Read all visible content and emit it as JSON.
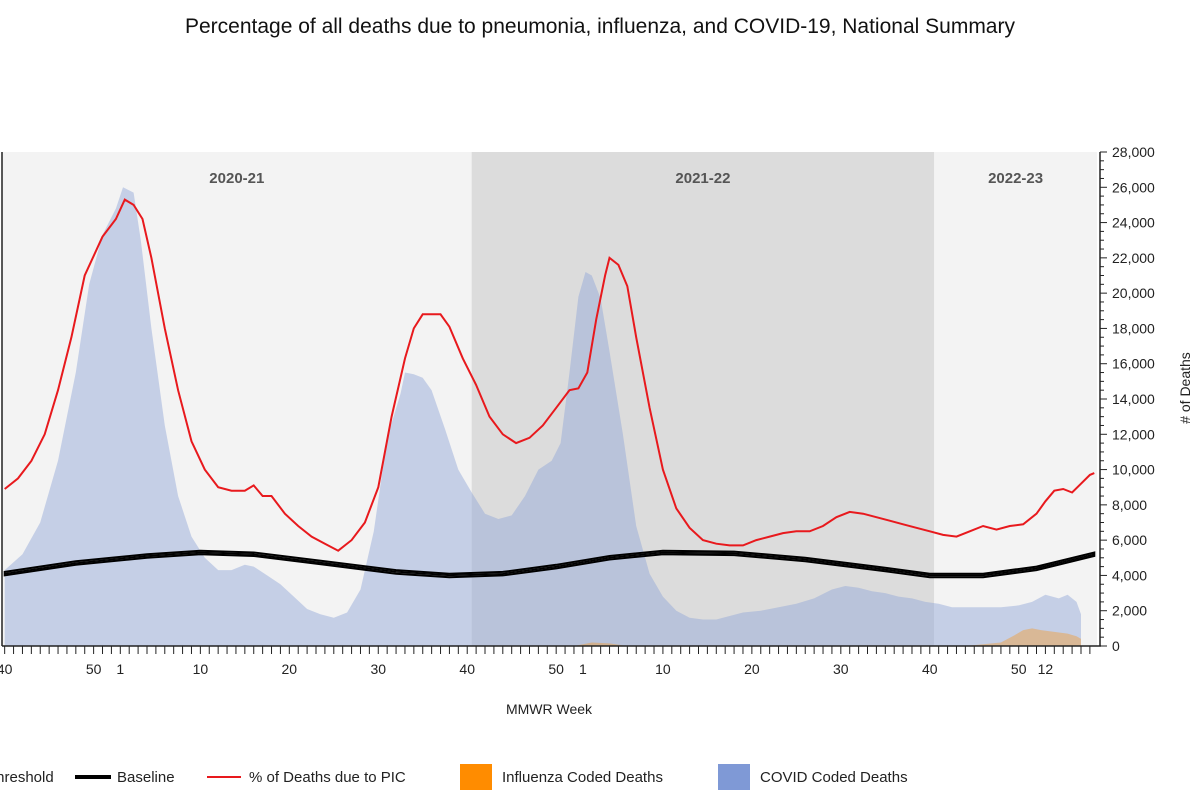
{
  "chart_data": {
    "type": "line",
    "title": "Percentage of all deaths due to pneumonia, influenza, and COVID-19, National Summary",
    "xlabel": "MMWR Week",
    "y2label": "# of Deaths",
    "x_tick_labels": [
      "40",
      "50",
      "1",
      "10",
      "20",
      "30",
      "40",
      "50",
      "1",
      "10",
      "20",
      "30",
      "40",
      "50",
      "12"
    ],
    "seasons": [
      "2020-21",
      "2021-22",
      "2022-23"
    ],
    "y2_ticks": [
      "0",
      "2,000",
      "4,000",
      "6,000",
      "8,000",
      "10,000",
      "12,000",
      "14,000",
      "16,000",
      "18,000",
      "20,000",
      "22,000",
      "24,000",
      "26,000",
      "28,000"
    ],
    "y2lim": [
      0,
      28000
    ],
    "legend": [
      "Threshold",
      "Baseline",
      "% of Deaths due to PIC",
      "Influenza Coded Deaths",
      "COVID Coded Deaths"
    ],
    "colors": {
      "covid": "#8fa3d6",
      "influenza": "#ff8c00",
      "pic": "#e8191d",
      "baseline": "#000000",
      "threshold": "#000000"
    },
    "series": [
      {
        "name": "COVID Coded Deaths",
        "kind": "area",
        "scale": "deaths",
        "points": [
          [
            0,
            4300
          ],
          [
            2,
            5200
          ],
          [
            4,
            7000
          ],
          [
            6,
            10500
          ],
          [
            8,
            15500
          ],
          [
            9.5,
            20500
          ],
          [
            11,
            23300
          ],
          [
            12.5,
            24800
          ],
          [
            13.3,
            26000
          ],
          [
            14.5,
            25700
          ],
          [
            15.3,
            23000
          ],
          [
            16.5,
            18000
          ],
          [
            18,
            12500
          ],
          [
            19.5,
            8500
          ],
          [
            21,
            6200
          ],
          [
            22.5,
            5000
          ],
          [
            24,
            4300
          ],
          [
            25.5,
            4300
          ],
          [
            27,
            4600
          ],
          [
            28,
            4500
          ],
          [
            29.5,
            4000
          ],
          [
            31,
            3500
          ],
          [
            32.5,
            2800
          ],
          [
            34,
            2100
          ],
          [
            35.5,
            1800
          ],
          [
            37,
            1600
          ],
          [
            38.5,
            1900
          ],
          [
            40,
            3200
          ],
          [
            41.5,
            6500
          ],
          [
            43,
            11800
          ],
          [
            44.5,
            14300
          ],
          [
            45,
            15500
          ],
          [
            46,
            15400
          ],
          [
            47,
            15200
          ],
          [
            48,
            14500
          ],
          [
            49.5,
            12300
          ],
          [
            51,
            10000
          ],
          [
            52.5,
            8700
          ],
          [
            54,
            7500
          ],
          [
            55.5,
            7200
          ],
          [
            57,
            7400
          ],
          [
            58.5,
            8500
          ],
          [
            60,
            10000
          ],
          [
            61.5,
            10500
          ],
          [
            62.5,
            11500
          ],
          [
            63.5,
            15500
          ],
          [
            64.5,
            19800
          ],
          [
            65.3,
            21200
          ],
          [
            66,
            21000
          ],
          [
            67,
            19700
          ],
          [
            68,
            16700
          ],
          [
            69.5,
            12000
          ],
          [
            71,
            6800
          ],
          [
            72.5,
            4100
          ],
          [
            74,
            2800
          ],
          [
            75.5,
            2000
          ],
          [
            77,
            1600
          ],
          [
            78.5,
            1500
          ],
          [
            80,
            1500
          ],
          [
            81.5,
            1700
          ],
          [
            83,
            1900
          ],
          [
            85,
            2000
          ],
          [
            87,
            2200
          ],
          [
            89,
            2400
          ],
          [
            91,
            2700
          ],
          [
            93,
            3200
          ],
          [
            94.5,
            3400
          ],
          [
            96,
            3300
          ],
          [
            97.5,
            3100
          ],
          [
            99,
            3000
          ],
          [
            100.5,
            2800
          ],
          [
            102,
            2700
          ],
          [
            103.5,
            2500
          ],
          [
            105,
            2400
          ],
          [
            106.5,
            2200
          ],
          [
            108,
            2200
          ],
          [
            110,
            2200
          ],
          [
            112,
            2200
          ],
          [
            114,
            2300
          ],
          [
            115.5,
            2500
          ],
          [
            117,
            2900
          ],
          [
            118.5,
            2700
          ],
          [
            119.5,
            2900
          ],
          [
            120.5,
            2500
          ],
          [
            121,
            1800
          ],
          [
            121,
            0
          ],
          [
            0,
            0
          ]
        ]
      },
      {
        "name": "Influenza Coded Deaths",
        "kind": "area",
        "scale": "deaths",
        "points": [
          [
            104,
            0
          ],
          [
            108,
            0
          ],
          [
            110,
            100
          ],
          [
            112,
            200
          ],
          [
            113.5,
            600
          ],
          [
            114.5,
            900
          ],
          [
            115.5,
            1000
          ],
          [
            116.5,
            900
          ],
          [
            118,
            800
          ],
          [
            119.5,
            700
          ],
          [
            120.5,
            550
          ],
          [
            121,
            400
          ],
          [
            121,
            0
          ],
          [
            64,
            0
          ],
          [
            64,
            0
          ],
          [
            66,
            200
          ],
          [
            68,
            150
          ],
          [
            70,
            0
          ]
        ]
      },
      {
        "name": "% of Deaths due to PIC",
        "kind": "line",
        "scale": "deaths",
        "points": [
          [
            0,
            8900
          ],
          [
            1.5,
            9500
          ],
          [
            3,
            10500
          ],
          [
            4.5,
            12000
          ],
          [
            6,
            14500
          ],
          [
            7.5,
            17500
          ],
          [
            9,
            21000
          ],
          [
            11,
            23200
          ],
          [
            12.5,
            24200
          ],
          [
            13.5,
            25300
          ],
          [
            14.5,
            25000
          ],
          [
            15.5,
            24200
          ],
          [
            16.5,
            22000
          ],
          [
            18,
            18000
          ],
          [
            19.5,
            14500
          ],
          [
            21,
            11600
          ],
          [
            22.5,
            10000
          ],
          [
            24,
            9000
          ],
          [
            25.5,
            8800
          ],
          [
            27,
            8800
          ],
          [
            28,
            9100
          ],
          [
            29,
            8500
          ],
          [
            30,
            8500
          ],
          [
            31.5,
            7500
          ],
          [
            33,
            6800
          ],
          [
            34.5,
            6200
          ],
          [
            36,
            5800
          ],
          [
            37.5,
            5400
          ],
          [
            39,
            6000
          ],
          [
            40.5,
            7000
          ],
          [
            42,
            9000
          ],
          [
            43.5,
            13000
          ],
          [
            45,
            16300
          ],
          [
            46,
            18000
          ],
          [
            47,
            18800
          ],
          [
            48,
            18800
          ],
          [
            49,
            18800
          ],
          [
            50,
            18100
          ],
          [
            51.5,
            16300
          ],
          [
            53,
            14800
          ],
          [
            54.5,
            13000
          ],
          [
            56,
            12000
          ],
          [
            57.5,
            11500
          ],
          [
            59,
            11800
          ],
          [
            60.5,
            12500
          ],
          [
            62,
            13500
          ],
          [
            63.5,
            14500
          ],
          [
            64.5,
            14600
          ],
          [
            65.5,
            15500
          ],
          [
            66.5,
            18500
          ],
          [
            67.5,
            21000
          ],
          [
            68,
            22000
          ],
          [
            69,
            21600
          ],
          [
            70,
            20400
          ],
          [
            71,
            17500
          ],
          [
            72.5,
            13500
          ],
          [
            74,
            10000
          ],
          [
            75.5,
            7800
          ],
          [
            77,
            6700
          ],
          [
            78.5,
            6000
          ],
          [
            80,
            5800
          ],
          [
            81.5,
            5700
          ],
          [
            83,
            5700
          ],
          [
            84.5,
            6000
          ],
          [
            86,
            6200
          ],
          [
            87.5,
            6400
          ],
          [
            89,
            6500
          ],
          [
            90.5,
            6500
          ],
          [
            92,
            6800
          ],
          [
            93.5,
            7300
          ],
          [
            95,
            7600
          ],
          [
            96.5,
            7500
          ],
          [
            98,
            7300
          ],
          [
            99.5,
            7100
          ],
          [
            101,
            6900
          ],
          [
            102.5,
            6700
          ],
          [
            104,
            6500
          ],
          [
            105.5,
            6300
          ],
          [
            107,
            6200
          ],
          [
            108.5,
            6500
          ],
          [
            110,
            6800
          ],
          [
            111.5,
            6600
          ],
          [
            113,
            6800
          ],
          [
            114.5,
            6900
          ],
          [
            116,
            7500
          ],
          [
            117,
            8200
          ],
          [
            118,
            8800
          ],
          [
            119,
            8900
          ],
          [
            120,
            8700
          ],
          [
            121,
            9200
          ],
          [
            122,
            9700
          ],
          [
            122.5,
            9800
          ]
        ]
      },
      {
        "name": "Baseline",
        "kind": "band",
        "scale": "deaths",
        "band_width": 200,
        "points": [
          [
            0,
            4100
          ],
          [
            8,
            4700
          ],
          [
            16,
            5100
          ],
          [
            22,
            5300
          ],
          [
            28,
            5200
          ],
          [
            36,
            4700
          ],
          [
            44,
            4200
          ],
          [
            50,
            4000
          ],
          [
            56,
            4100
          ],
          [
            62,
            4500
          ],
          [
            68,
            5000
          ],
          [
            74,
            5300
          ],
          [
            82,
            5250
          ],
          [
            90,
            4900
          ],
          [
            98,
            4400
          ],
          [
            104,
            4000
          ],
          [
            110,
            4000
          ],
          [
            116,
            4400
          ],
          [
            122.5,
            5200
          ]
        ]
      }
    ]
  }
}
